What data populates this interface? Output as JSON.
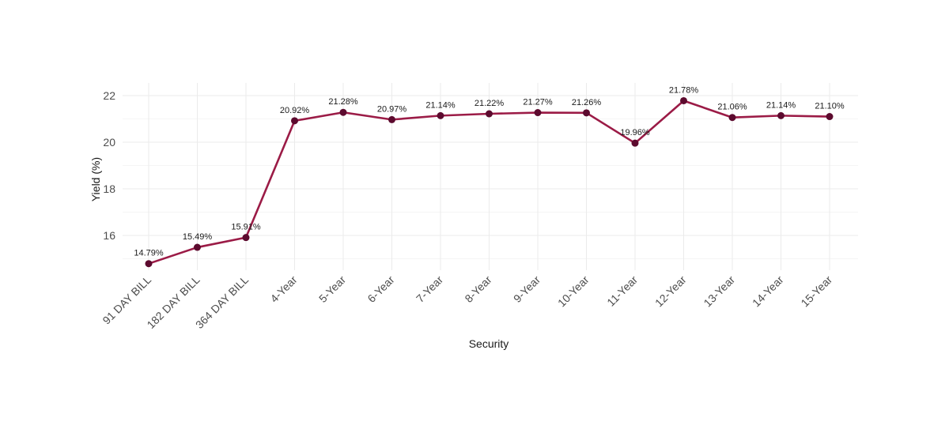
{
  "chart_data": {
    "type": "line",
    "title": "",
    "xlabel": "Security",
    "ylabel": "Yield (%)",
    "categories": [
      "91 DAY BILL",
      "182 DAY BILL",
      "364 DAY BILL",
      "4-Year",
      "5-Year",
      "6-Year",
      "7-Year",
      "8-Year",
      "9-Year",
      "10-Year",
      "11-Year",
      "12-Year",
      "13-Year",
      "14-Year",
      "15-Year"
    ],
    "series": [
      {
        "name": "Yield",
        "values": [
          14.79,
          15.49,
          15.91,
          20.92,
          21.28,
          20.97,
          21.14,
          21.22,
          21.27,
          21.26,
          19.96,
          21.78,
          21.06,
          21.14,
          21.1
        ],
        "labels": [
          "14.79%",
          "15.49%",
          "15.91%",
          "20.92%",
          "21.28%",
          "20.97%",
          "21.14%",
          "21.22%",
          "21.27%",
          "21.26%",
          "19.96%",
          "21.78%",
          "21.06%",
          "21.14%",
          "21.10%"
        ]
      }
    ],
    "yticks": [
      16,
      18,
      20,
      22
    ],
    "ylim": [
      14.79,
      22.25
    ],
    "grid": true,
    "legend": "none",
    "colors": {
      "line": "#9b1b46",
      "point": "#5c0a2e",
      "grid": "#ebebeb"
    }
  }
}
